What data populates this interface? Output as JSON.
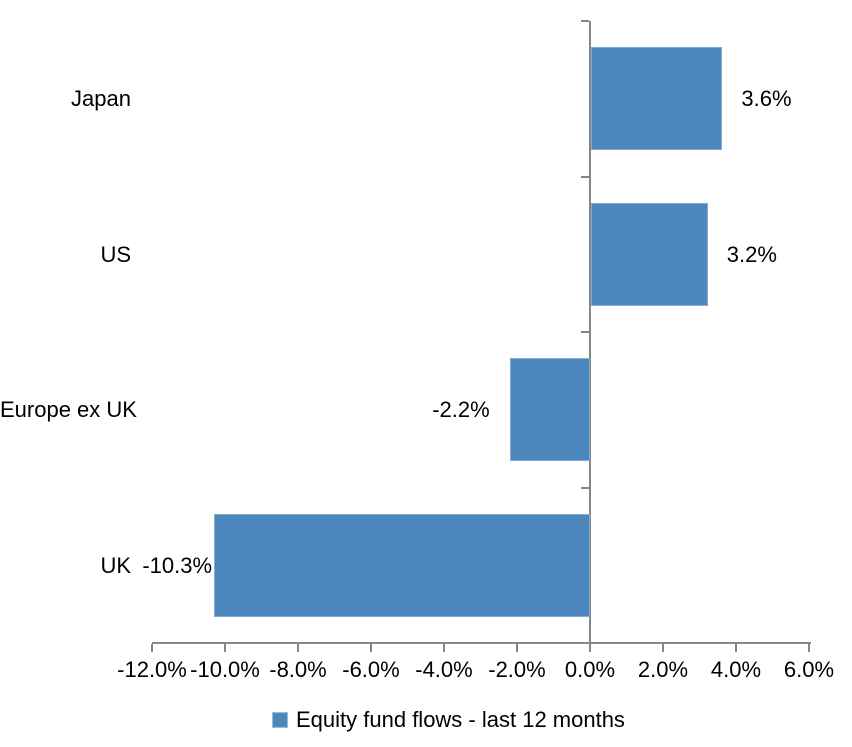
{
  "chart_data": {
    "type": "bar",
    "orientation": "horizontal",
    "title": "",
    "xlabel": "",
    "ylabel": "",
    "categories": [
      "Japan",
      "US",
      "Europe ex UK",
      "UK"
    ],
    "values": [
      3.6,
      3.2,
      -2.2,
      -10.3
    ],
    "value_labels": [
      "3.6%",
      "3.2%",
      "-2.2%",
      "-10.3%"
    ],
    "series": [
      {
        "name": "Equity fund flows - last 12 months",
        "values": [
          3.6,
          3.2,
          -2.2,
          -10.3
        ]
      }
    ],
    "xlim": [
      -12,
      6
    ],
    "x_ticks": [
      -12,
      -10,
      -8,
      -6,
      -4,
      -2,
      0,
      2,
      4,
      6
    ],
    "x_tick_labels": [
      "-12.0%",
      "-10.0%",
      "-8.0%",
      "-6.0%",
      "-4.0%",
      "-2.0%",
      "0.0%",
      "2.0%",
      "4.0%",
      "6.0%"
    ],
    "grid": false,
    "legend_position": "bottom",
    "legend_label": "Equity fund flows - last 12 months",
    "bar_color": "#4d87be",
    "axis_color": "#878787",
    "text_color": "#000000"
  }
}
